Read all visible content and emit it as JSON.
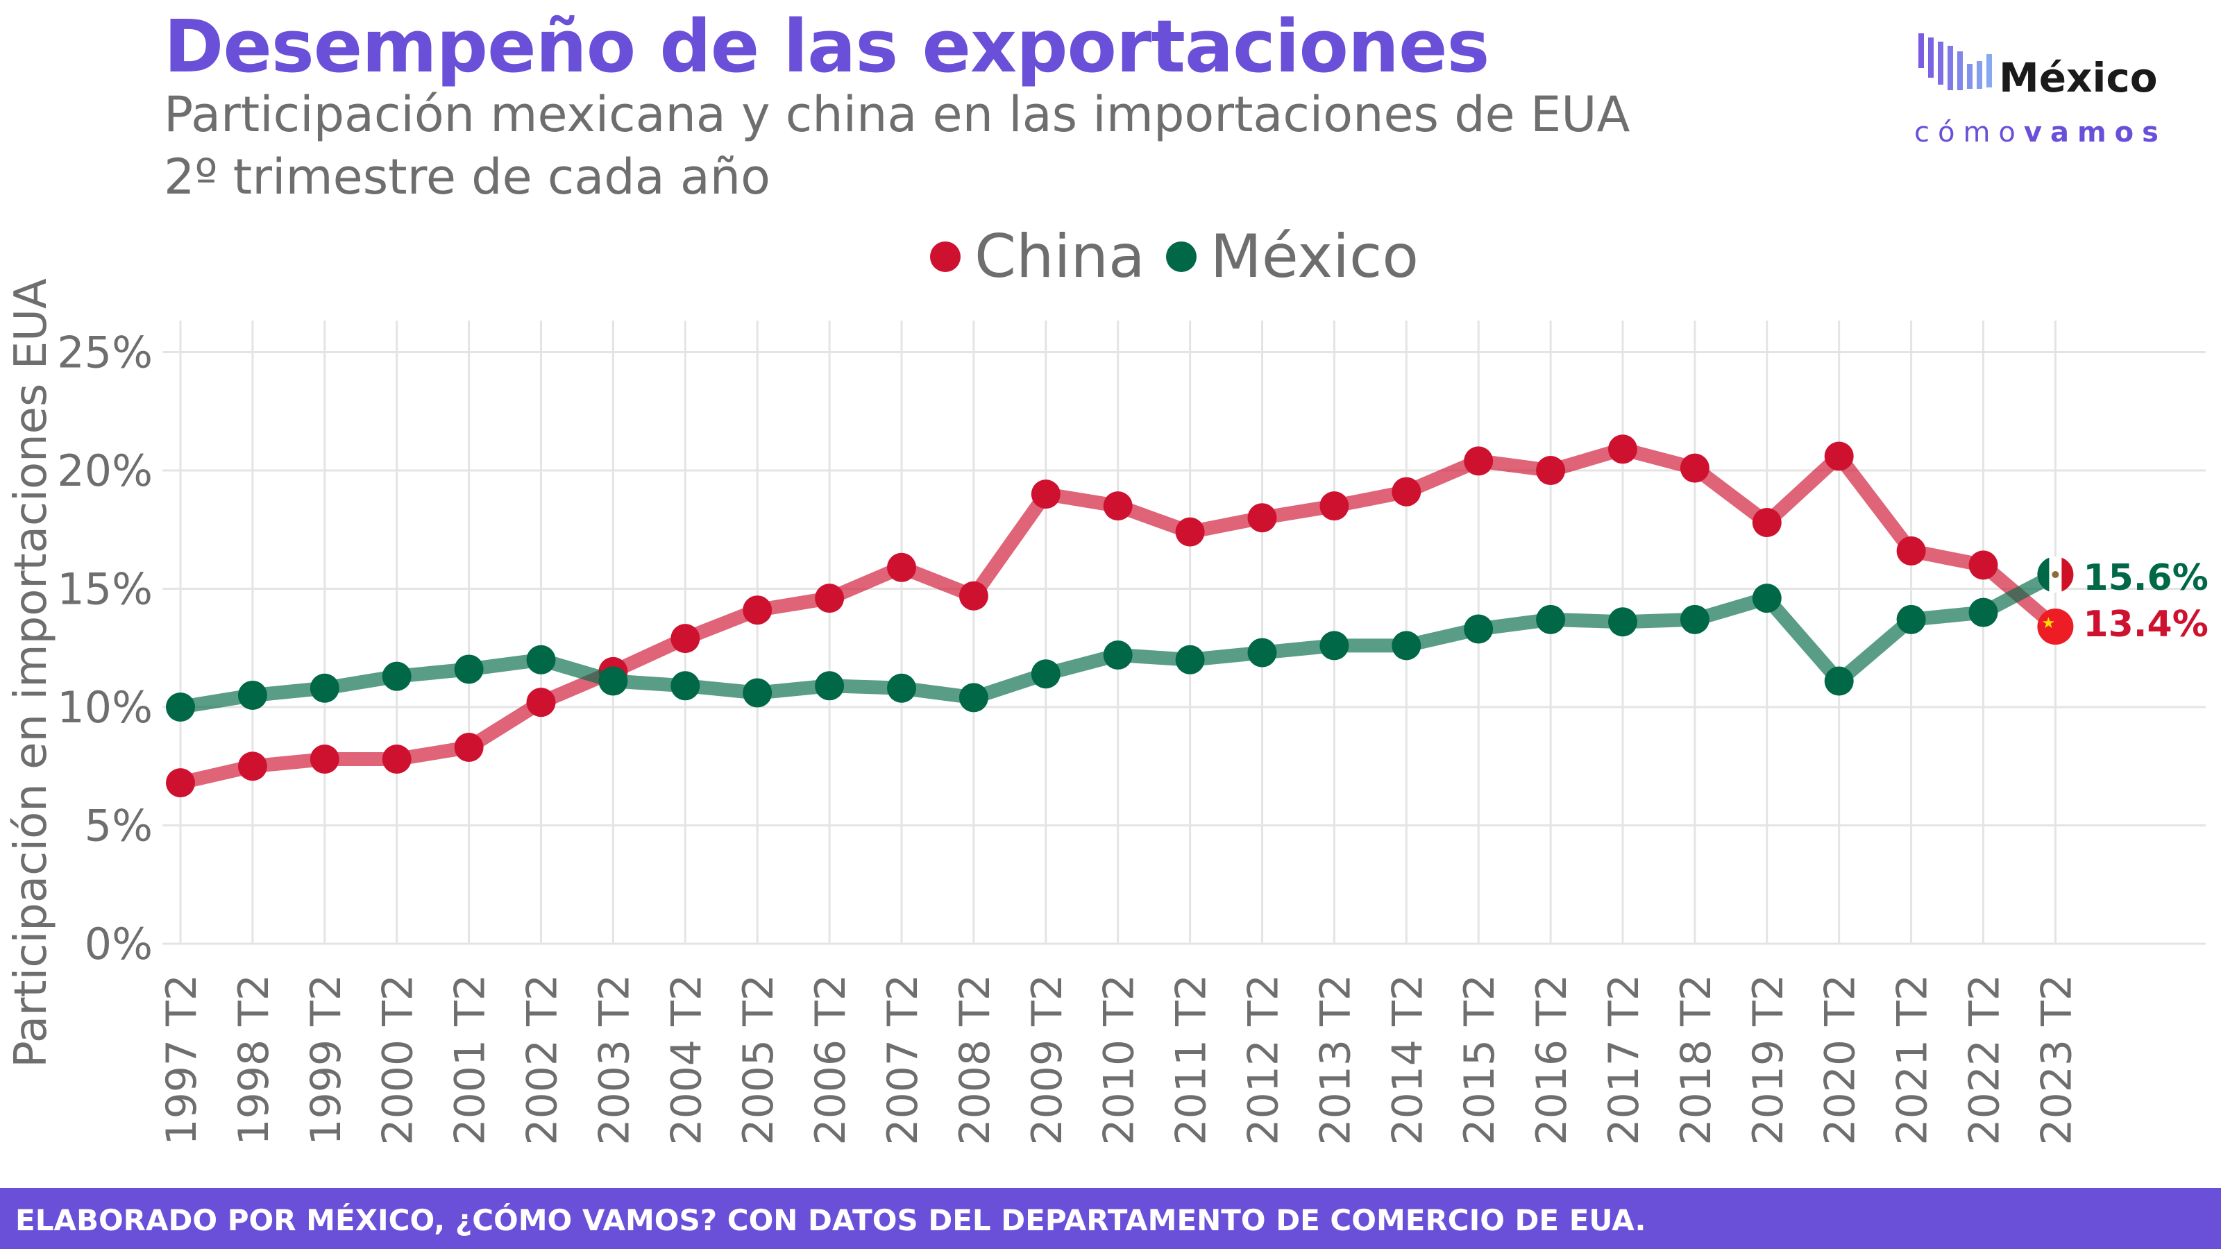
{
  "header": {
    "title": "Desempeño de las exportaciones",
    "subtitle_line1": "Participación mexicana y china en las importaciones de EUA",
    "subtitle_line2": "2º trimestre de cada año"
  },
  "logo": {
    "name": "México",
    "tagline_light": "cómo",
    "tagline_bold": "vamos"
  },
  "colors": {
    "brand": "#6a4fd8",
    "china": "#cf1130",
    "mexico": "#006847",
    "text_gray": "#6e6e6e",
    "grid": "#e4e4e4"
  },
  "footer": {
    "text": "ELABORADO POR MÉXICO, ¿CÓMO VAMOS? CON DATOS DEL DEPARTAMENTO DE COMERCIO DE EUA."
  },
  "chart_data": {
    "type": "line",
    "ylabel": "Participación en importaciones EUA",
    "xlabel": "",
    "ylim": [
      0,
      26
    ],
    "yticks": [
      0,
      5,
      10,
      15,
      20,
      25
    ],
    "ytick_labels": [
      "0%",
      "5%",
      "10%",
      "15%",
      "20%",
      "25%"
    ],
    "grid": true,
    "legend_position": "top",
    "categories": [
      "1997 T2",
      "1998 T2",
      "1999 T2",
      "2000 T2",
      "2001 T2",
      "2002 T2",
      "2003 T2",
      "2004 T2",
      "2005 T2",
      "2006 T2",
      "2007 T2",
      "2008 T2",
      "2009 T2",
      "2010 T2",
      "2011 T2",
      "2012 T2",
      "2013 T2",
      "2014 T2",
      "2015 T2",
      "2016 T2",
      "2017 T2",
      "2018 T2",
      "2019 T2",
      "2020 T2",
      "2021 T2",
      "2022 T2",
      "2023 T2"
    ],
    "series": [
      {
        "name": "China",
        "color": "#cf1130",
        "end_label": "13.4%",
        "values": [
          6.8,
          7.5,
          7.8,
          7.8,
          8.3,
          10.2,
          11.5,
          12.9,
          14.1,
          14.6,
          15.9,
          14.7,
          19.0,
          18.5,
          17.4,
          18.0,
          18.5,
          19.1,
          20.4,
          20.0,
          20.9,
          20.1,
          17.8,
          20.6,
          16.6,
          16.0,
          13.4
        ]
      },
      {
        "name": "México",
        "color": "#006847",
        "end_label": "15.6%",
        "values": [
          10.0,
          10.5,
          10.8,
          11.3,
          11.6,
          12.0,
          11.1,
          10.9,
          10.6,
          10.9,
          10.8,
          10.4,
          11.4,
          12.2,
          12.0,
          12.3,
          12.6,
          12.6,
          13.3,
          13.7,
          13.6,
          13.7,
          14.6,
          11.1,
          13.7,
          14.0,
          15.6
        ]
      }
    ]
  }
}
